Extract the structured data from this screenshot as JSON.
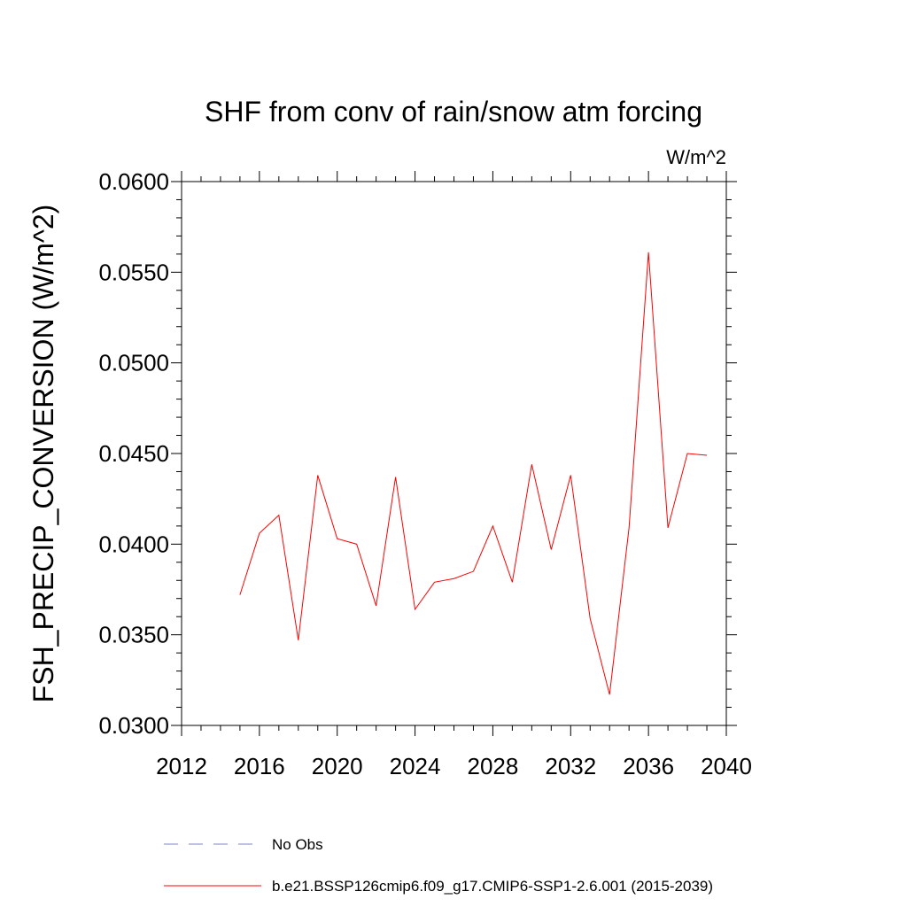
{
  "chart_data": {
    "type": "line",
    "title": "SHF from conv of rain/snow atm forcing",
    "units": "W/m^2",
    "y_label": "FSH_PRECIP_CONVERSION  (W/m^2)",
    "x": [
      2015,
      2016,
      2017,
      2018,
      2019,
      2020,
      2021,
      2022,
      2023,
      2024,
      2025,
      2026,
      2027,
      2028,
      2029,
      2030,
      2031,
      2032,
      2033,
      2034,
      2035,
      2036,
      2037,
      2038,
      2039
    ],
    "series": [
      {
        "name": "No Obs",
        "color": "#8080c0",
        "dashed": true,
        "values": [
          null,
          null,
          null,
          null,
          null,
          null,
          null,
          null,
          null,
          null,
          null,
          null,
          null,
          null,
          null,
          null,
          null,
          null,
          null,
          null,
          null,
          null,
          null,
          null,
          null
        ]
      },
      {
        "name": "b.e21.BSSP126cmip6.f09_g17.CMIP6-SSP1-2.6.001 (2015-2039)",
        "color": "#ff0000",
        "dashed": false,
        "values": [
          0.0372,
          0.0406,
          0.0416,
          0.0347,
          0.0438,
          0.0403,
          0.04,
          0.0366,
          0.0437,
          0.0364,
          0.0379,
          0.0381,
          0.0385,
          0.041,
          0.0379,
          0.0444,
          0.0397,
          0.0438,
          0.0359,
          0.0317,
          0.0409,
          0.0561,
          0.0409,
          0.045,
          0.0449
        ]
      }
    ],
    "xlim": [
      2012,
      2040
    ],
    "xticks": [
      2012,
      2016,
      2020,
      2024,
      2028,
      2032,
      2036,
      2040
    ],
    "xminorticks": [
      2013,
      2014,
      2015,
      2017,
      2018,
      2019,
      2021,
      2022,
      2023,
      2025,
      2026,
      2027,
      2029,
      2030,
      2031,
      2033,
      2034,
      2035,
      2037,
      2038,
      2039
    ],
    "ylim": [
      0.03,
      0.06
    ],
    "yticks": [
      {
        "value": 0.03,
        "label": "0.0300"
      },
      {
        "value": 0.035,
        "label": "0.0350"
      },
      {
        "value": 0.04,
        "label": "0.0400"
      },
      {
        "value": 0.045,
        "label": "0.0450"
      },
      {
        "value": 0.05,
        "label": "0.0500"
      },
      {
        "value": 0.055,
        "label": "0.0550"
      },
      {
        "value": 0.06,
        "label": "0.0600"
      }
    ],
    "yminorticks": [
      0.031,
      0.032,
      0.033,
      0.034,
      0.036,
      0.037,
      0.038,
      0.039,
      0.041,
      0.042,
      0.043,
      0.044,
      0.046,
      0.047,
      0.048,
      0.049,
      0.051,
      0.052,
      0.053,
      0.054,
      0.056,
      0.057,
      0.058,
      0.059
    ],
    "grid": false
  }
}
